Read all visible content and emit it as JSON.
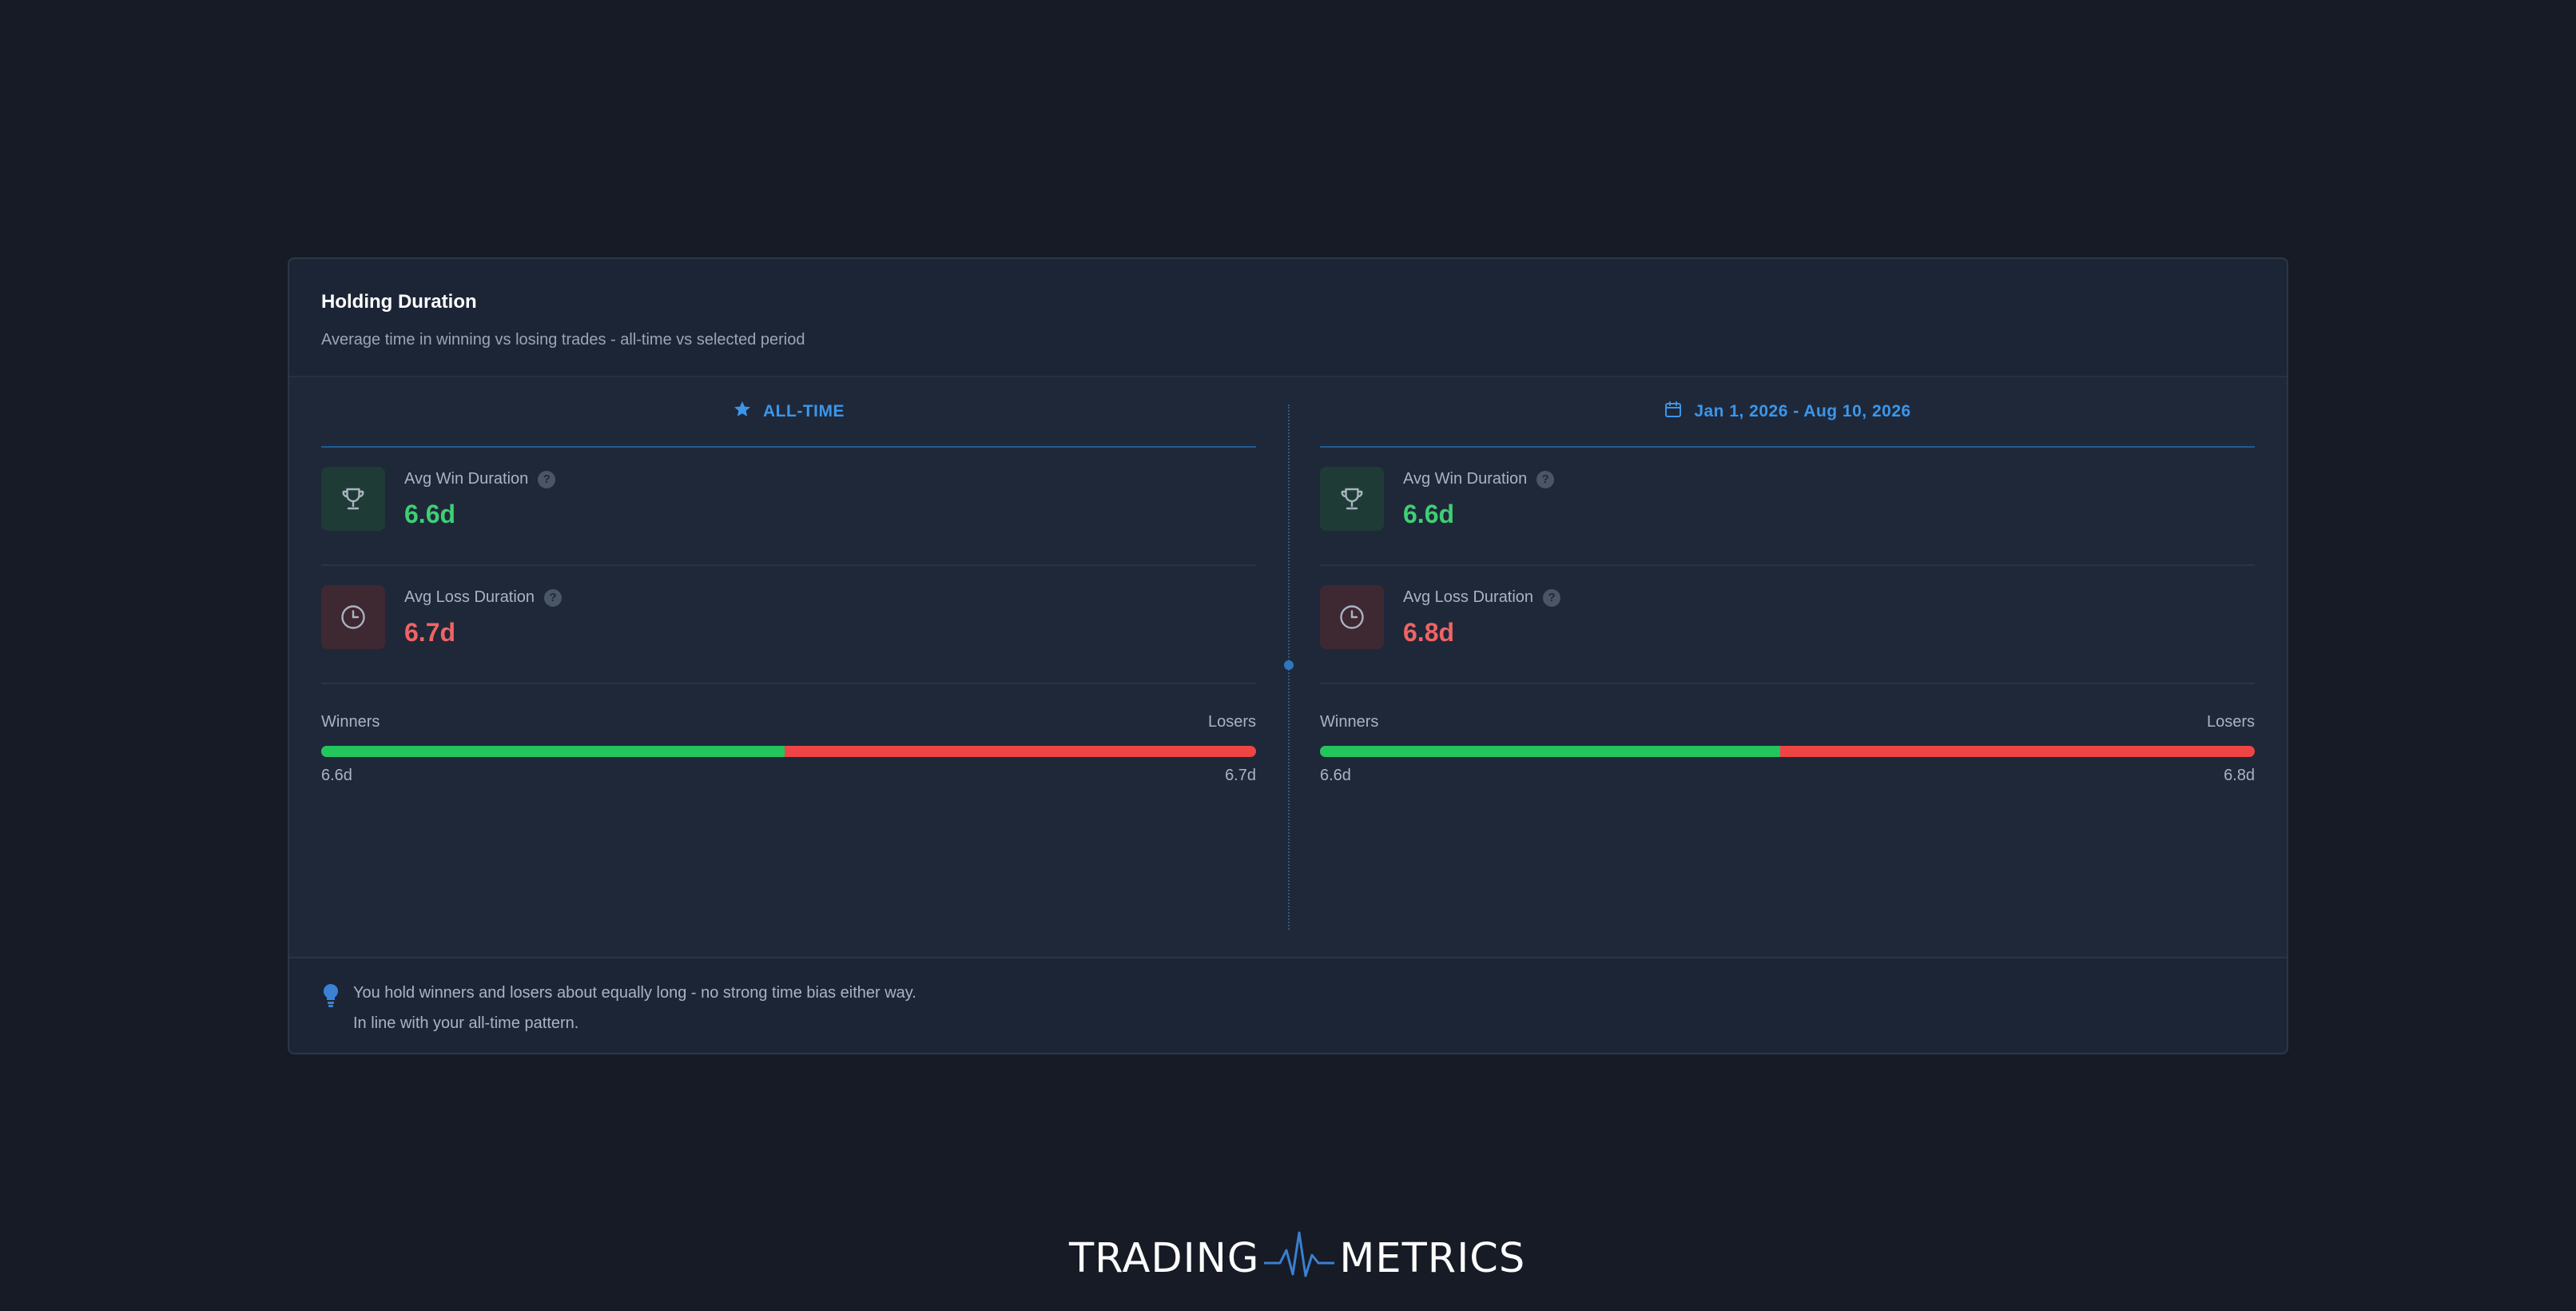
{
  "card": {
    "title": "Holding Duration",
    "subtitle": "Average time in winning vs losing trades - all-time vs selected period"
  },
  "panels": [
    {
      "header": "ALL-TIME",
      "header_icon": "star-icon",
      "win_label": "Avg Win Duration",
      "win_value": "6.6d",
      "loss_label": "Avg Loss Duration",
      "loss_value": "6.7d",
      "winners_label": "Winners",
      "losers_label": "Losers",
      "winners_value": "6.6d",
      "losers_value": "6.7d",
      "winners_share": 0.496
    },
    {
      "header": "Jan 1, 2026 - Aug 10, 2026",
      "header_icon": "calendar-icon",
      "win_label": "Avg Win Duration",
      "win_value": "6.6d",
      "loss_label": "Avg Loss Duration",
      "loss_value": "6.8d",
      "winners_label": "Winners",
      "losers_label": "Losers",
      "winners_value": "6.6d",
      "losers_value": "6.8d",
      "winners_share": 0.492
    }
  ],
  "insight": {
    "line1": "You hold winners and losers about equally long - no strong time bias either way.",
    "line2": "In line with your all-time pattern."
  },
  "logo": {
    "left": "TRADING",
    "right": "METRICS"
  },
  "colors": {
    "background": "#161b26",
    "card": "#1c2535",
    "accent": "#3b96ea",
    "win": "#22c55e",
    "loss": "#ef4444"
  }
}
